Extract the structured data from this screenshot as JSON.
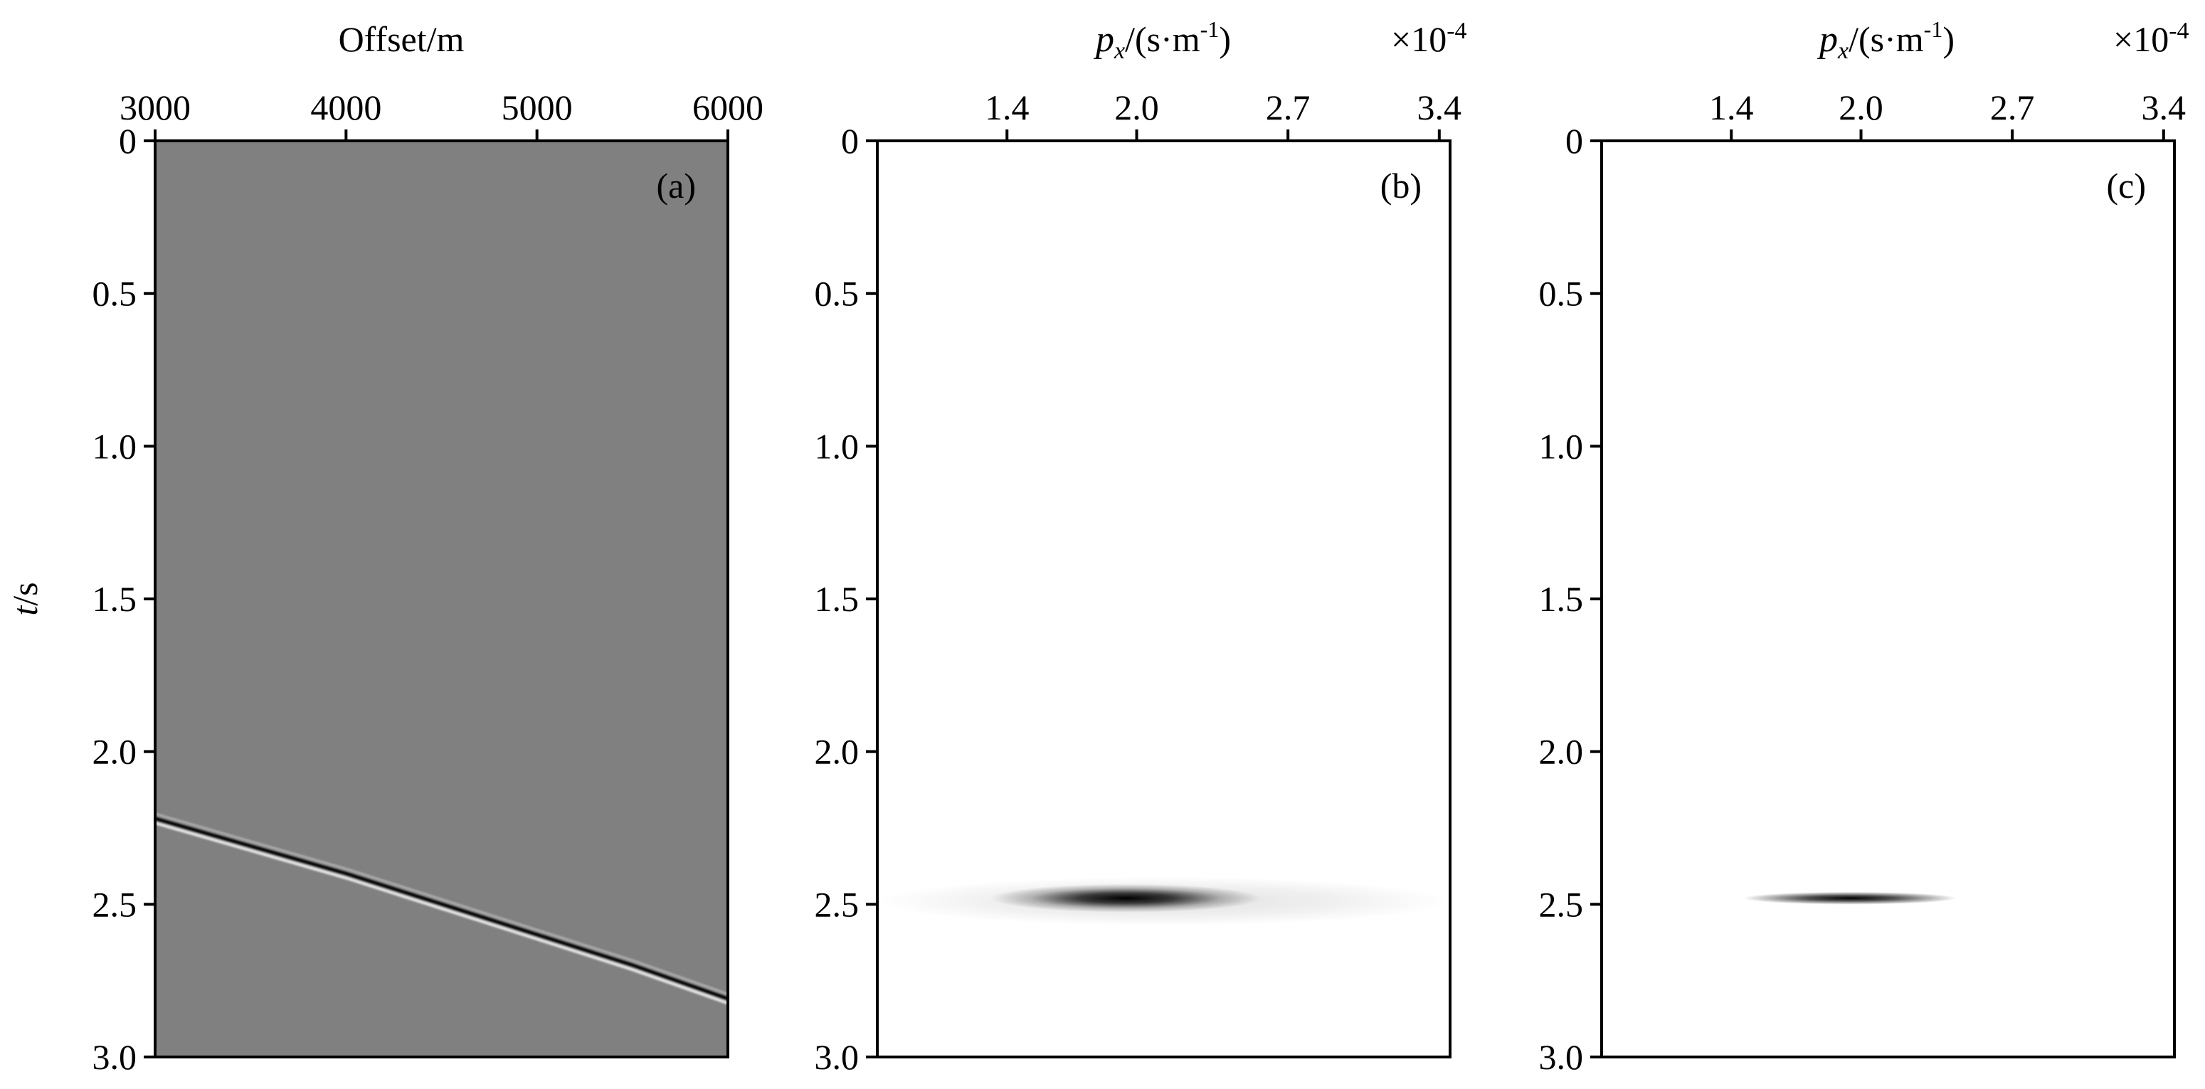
{
  "chart_data": [
    {
      "type": "heatmap",
      "panel": "(a)",
      "xlabel": "Offset/m",
      "ylabel_italic": "t",
      "ylabel_rest": "/s",
      "x_ticks": [
        3000,
        4000,
        5000,
        6000
      ],
      "x_tick_labels": [
        "3000",
        "4000",
        "5000",
        "6000"
      ],
      "xlim": [
        3000,
        6000
      ],
      "y_ticks": [
        0,
        0.5,
        1.0,
        1.5,
        2.0,
        2.5,
        3.0
      ],
      "y_tick_labels": [
        "0",
        "0.5",
        "1.0",
        "1.5",
        "2.0",
        "2.5",
        "3.0"
      ],
      "ylim": [
        0,
        3.0
      ],
      "background": "#808080",
      "event": {
        "kind": "hyperbola",
        "offset": [
          3000,
          3500,
          4000,
          4500,
          5000,
          5500,
          6000
        ],
        "time": [
          2.22,
          2.31,
          2.4,
          2.5,
          2.6,
          2.7,
          2.81
        ]
      }
    },
    {
      "type": "heatmap",
      "panel": "(b)",
      "xlabel_italic": "p",
      "xlabel_sub": "x",
      "xlabel_rest": "/(s·m",
      "xlabel_sup": "-1",
      "xlabel_close": ")",
      "x_multiplier_prefix": "×10",
      "x_multiplier_exp": "-4",
      "x_ticks": [
        1.4,
        2.0,
        2.7,
        3.4
      ],
      "x_tick_labels": [
        "1.4",
        "2.0",
        "2.7",
        "3.4"
      ],
      "xlim": [
        0.8,
        3.45
      ],
      "y_ticks": [
        0,
        0.5,
        1.0,
        1.5,
        2.0,
        2.5,
        3.0
      ],
      "y_tick_labels": [
        "0",
        "0.5",
        "1.0",
        "1.5",
        "2.0",
        "2.5",
        "3.0"
      ],
      "ylim": [
        0,
        3.0
      ],
      "background": "#ffffff",
      "event": {
        "kind": "focused-blob",
        "p": 1.95,
        "t": 2.48,
        "halo_p_range": [
          0.8,
          3.45
        ],
        "halo_t_range": [
          2.41,
          2.57
        ]
      }
    },
    {
      "type": "heatmap",
      "panel": "(c)",
      "xlabel_italic": "p",
      "xlabel_sub": "x",
      "xlabel_rest": "/(s·m",
      "xlabel_sup": "-1",
      "xlabel_close": ")",
      "x_multiplier_prefix": "×10",
      "x_multiplier_exp": "-4",
      "x_ticks": [
        1.4,
        2.0,
        2.7,
        3.4
      ],
      "x_tick_labels": [
        "1.4",
        "2.0",
        "2.7",
        "3.4"
      ],
      "xlim": [
        0.8,
        3.45
      ],
      "y_ticks": [
        0,
        0.5,
        1.0,
        1.5,
        2.0,
        2.5,
        3.0
      ],
      "y_tick_labels": [
        "0",
        "0.5",
        "1.0",
        "1.5",
        "2.0",
        "2.5",
        "3.0"
      ],
      "ylim": [
        0,
        3.0
      ],
      "background": "#ffffff",
      "event": {
        "kind": "focused-blob",
        "p": 1.95,
        "t": 2.48
      }
    }
  ]
}
